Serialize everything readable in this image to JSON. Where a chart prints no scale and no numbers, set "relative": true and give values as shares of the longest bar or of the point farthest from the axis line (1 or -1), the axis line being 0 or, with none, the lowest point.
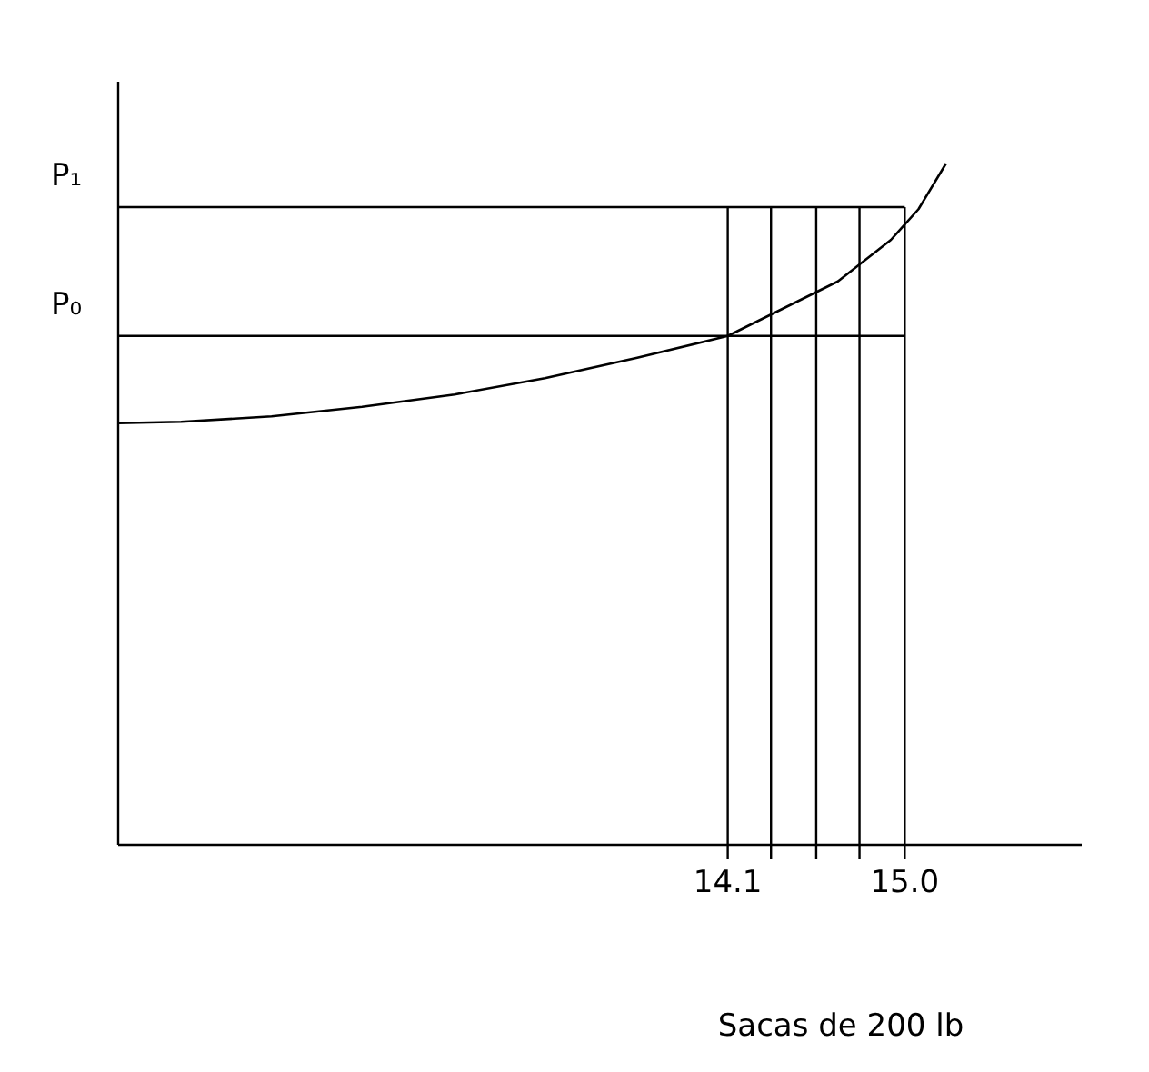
{
  "chart_data": {
    "type": "line",
    "xlabel": "Sacas de 200 lb",
    "relative": true,
    "xlim": [
      11.0,
      15.9
    ],
    "xticks": [
      14.1,
      {
        "value": 15.0,
        "label": "15.0"
      }
    ],
    "tick_labels": "x",
    "grid": false,
    "line_style": "solid",
    "series": [
      {
        "color": "#000000",
        "x": [
          11.0,
          11.32,
          11.78,
          12.24,
          12.71,
          13.17,
          13.64,
          14.1,
          14.38,
          14.66,
          14.93,
          15.07,
          15.21
        ],
        "values": [
          0.619,
          0.621,
          0.629,
          0.643,
          0.661,
          0.685,
          0.715,
          0.747,
          0.787,
          0.827,
          0.888,
          0.933,
          1.0
        ]
      }
    ],
    "ref_lines": [
      {
        "axis": "y",
        "value": 0.936,
        "label": "P₁",
        "color": "#000000"
      },
      {
        "axis": "y",
        "value": 0.747,
        "label": "P₀",
        "color": "#000000"
      },
      {
        "axis": "x",
        "value": 14.1,
        "color": "#000000"
      },
      {
        "axis": "x",
        "value": 14.32,
        "color": "#000000"
      },
      {
        "axis": "x",
        "value": 14.55,
        "color": "#000000"
      },
      {
        "axis": "x",
        "value": 14.77,
        "color": "#000000"
      },
      {
        "axis": "x",
        "value": 15.0,
        "color": "#000000"
      }
    ]
  }
}
